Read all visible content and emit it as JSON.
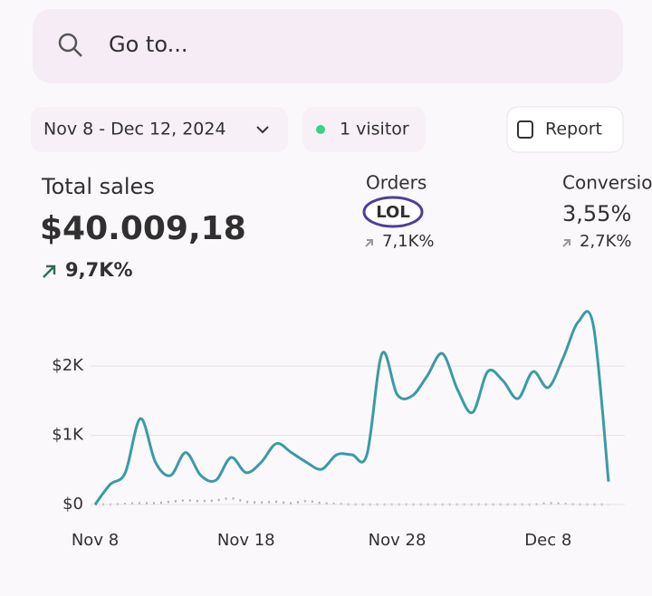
{
  "ui": {
    "search_placeholder": "Go to...",
    "date_range": "Nov 8 - Dec 12, 2024",
    "visitors": "1 visitor",
    "report": "Report"
  },
  "metrics": [
    {
      "label": "Total sales",
      "value": "$40.009,18",
      "change": "9,7K%"
    },
    {
      "label": "Orders",
      "sticker": "LOL",
      "change": "7,1K%"
    },
    {
      "label": "Conversion",
      "value": "3,55%",
      "change": "2,7K%"
    }
  ],
  "chart_data": {
    "type": "line",
    "categories": [
      "Nov 8",
      null,
      null,
      null,
      null,
      null,
      null,
      null,
      null,
      null,
      "Nov 18",
      null,
      null,
      null,
      null,
      null,
      null,
      null,
      null,
      null,
      "Nov 28",
      null,
      null,
      null,
      null,
      null,
      null,
      null,
      null,
      null,
      "Dec 8",
      null,
      null,
      null,
      null
    ],
    "series": [
      {
        "color": "#3a9ba6",
        "values": [
          0,
          290,
          460,
          1240,
          610,
          420,
          750,
          420,
          350,
          680,
          460,
          610,
          880,
          750,
          610,
          510,
          720,
          720,
          720,
          2180,
          1590,
          1570,
          1860,
          2180,
          1660,
          1330,
          1920,
          1790,
          1530,
          1920,
          1690,
          2120,
          2640,
          2580,
          330
        ]
      },
      {
        "color": "#b0b0b4",
        "values": [
          0,
          0,
          10,
          20,
          20,
          40,
          60,
          50,
          60,
          90,
          40,
          30,
          40,
          20,
          50,
          20,
          10,
          0,
          0,
          0,
          0,
          0,
          0,
          0,
          0,
          0,
          0,
          0,
          0,
          0,
          20,
          10,
          0,
          0,
          0
        ]
      }
    ],
    "ylim": [
      0,
      2800
    ],
    "yticks": [
      {
        "value": 0,
        "label": "$0"
      },
      {
        "value": 1000,
        "label": "$1K"
      },
      {
        "value": 2000,
        "label": "$2K"
      }
    ],
    "grid": true
  }
}
